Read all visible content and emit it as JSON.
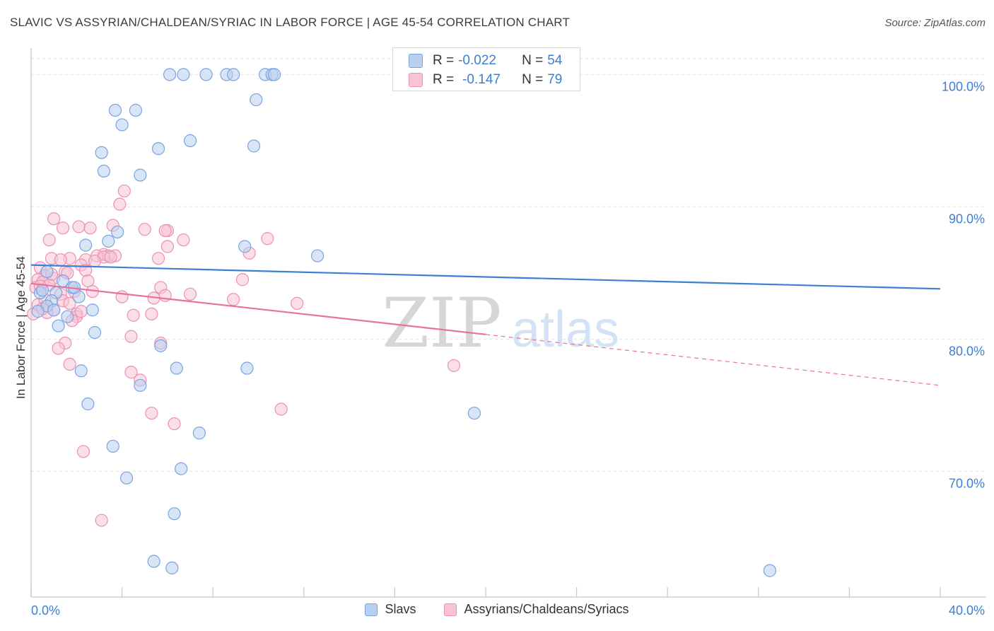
{
  "title": "SLAVIC VS ASSYRIAN/CHALDEAN/SYRIAC IN LABOR FORCE | AGE 45-54 CORRELATION CHART",
  "source": "Source: ZipAtlas.com",
  "watermark": {
    "zip": "ZIP",
    "atlas": "atlas"
  },
  "stats": {
    "r_label": "R =",
    "n_label": "N =",
    "series1": {
      "r": "-0.022",
      "n": "54",
      "fill": "#b8d0f0",
      "stroke": "#7aa3df"
    },
    "series2": {
      "r": "-0.147",
      "n": "79",
      "fill": "#f8c4d5",
      "stroke": "#ec90b0"
    }
  },
  "legend": {
    "series1": "Slavs",
    "series2": "Assyrians/Chaldeans/Syriacs"
  },
  "chart_data": {
    "type": "scatter",
    "title": "SLAVIC VS ASSYRIAN/CHALDEAN/SYRIAC IN LABOR FORCE | AGE 45-54 CORRELATION CHART",
    "xlabel": "",
    "ylabel": "In Labor Force | Age 45-54",
    "xlim": [
      0,
      40
    ],
    "ylim": [
      60.5,
      102
    ],
    "x_tick_labels": [
      "0.0%",
      "40.0%"
    ],
    "y_ticks": [
      70,
      80,
      90,
      100
    ],
    "y_tick_labels": [
      "70.0%",
      "80.0%",
      "90.0%",
      "100.0%"
    ],
    "colors": {
      "series1": "#3d7fd4",
      "series2": "#e8729a",
      "axis_label": "#3d7fd4"
    },
    "series": [
      {
        "name": "Slavs",
        "trend": {
          "x": [
            0,
            40
          ],
          "y": [
            85.6,
            83.8
          ],
          "solid_until": 40
        },
        "points": [
          [
            6.1,
            100
          ],
          [
            6.7,
            100
          ],
          [
            7.7,
            100
          ],
          [
            8.6,
            100
          ],
          [
            8.9,
            100
          ],
          [
            10.3,
            100
          ],
          [
            10.6,
            100
          ],
          [
            10.7,
            100
          ],
          [
            9.9,
            98.1
          ],
          [
            3.7,
            97.3
          ],
          [
            4.6,
            97.3
          ],
          [
            4.0,
            96.2
          ],
          [
            7.0,
            95.0
          ],
          [
            9.8,
            94.6
          ],
          [
            5.6,
            94.4
          ],
          [
            3.1,
            94.1
          ],
          [
            3.2,
            92.7
          ],
          [
            4.8,
            92.4
          ],
          [
            3.8,
            88.1
          ],
          [
            3.4,
            87.4
          ],
          [
            2.4,
            87.1
          ],
          [
            9.4,
            87.0
          ],
          [
            12.6,
            86.3
          ],
          [
            0.4,
            83.5
          ],
          [
            0.7,
            85.1
          ],
          [
            1.4,
            84.4
          ],
          [
            1.8,
            83.9
          ],
          [
            1.1,
            83.5
          ],
          [
            2.1,
            83.2
          ],
          [
            0.9,
            82.9
          ],
          [
            0.7,
            82.5
          ],
          [
            1.0,
            82.2
          ],
          [
            2.7,
            82.2
          ],
          [
            1.6,
            81.7
          ],
          [
            1.2,
            81.0
          ],
          [
            2.8,
            80.5
          ],
          [
            5.7,
            79.5
          ],
          [
            2.2,
            77.6
          ],
          [
            6.4,
            77.8
          ],
          [
            9.5,
            77.8
          ],
          [
            4.8,
            76.5
          ],
          [
            2.5,
            75.1
          ],
          [
            19.5,
            74.4
          ],
          [
            7.4,
            72.9
          ],
          [
            3.6,
            71.9
          ],
          [
            6.6,
            70.2
          ],
          [
            4.2,
            69.5
          ],
          [
            6.3,
            66.8
          ],
          [
            5.4,
            63.2
          ],
          [
            6.2,
            62.7
          ],
          [
            32.5,
            62.5
          ],
          [
            0.3,
            82.1
          ],
          [
            0.5,
            83.7
          ],
          [
            1.9,
            83.9
          ]
        ]
      },
      {
        "name": "Assyrians/Chaldeans/Syriacs",
        "trend": {
          "x": [
            0,
            40
          ],
          "y": [
            84.2,
            76.5
          ],
          "solid_until": 20
        },
        "points": [
          [
            4.1,
            91.2
          ],
          [
            3.9,
            90.2
          ],
          [
            1.0,
            89.1
          ],
          [
            3.6,
            88.6
          ],
          [
            2.1,
            88.5
          ],
          [
            2.6,
            88.4
          ],
          [
            5.0,
            88.3
          ],
          [
            1.4,
            88.4
          ],
          [
            6.0,
            88.2
          ],
          [
            0.8,
            87.5
          ],
          [
            6.7,
            87.5
          ],
          [
            10.4,
            87.6
          ],
          [
            6.0,
            87.0
          ],
          [
            9.6,
            86.5
          ],
          [
            3.2,
            86.4
          ],
          [
            2.9,
            86.3
          ],
          [
            3.4,
            86.3
          ],
          [
            3.2,
            86.2
          ],
          [
            1.7,
            86.1
          ],
          [
            2.4,
            86.0
          ],
          [
            3.7,
            86.3
          ],
          [
            5.6,
            86.1
          ],
          [
            0.9,
            86.1
          ],
          [
            2.8,
            85.9
          ],
          [
            2.2,
            85.6
          ],
          [
            0.4,
            85.4
          ],
          [
            1.5,
            85.1
          ],
          [
            2.4,
            85.2
          ],
          [
            0.6,
            84.8
          ],
          [
            1.0,
            84.6
          ],
          [
            0.3,
            84.5
          ],
          [
            0.5,
            84.3
          ],
          [
            0.8,
            84.1
          ],
          [
            2.5,
            84.4
          ],
          [
            9.3,
            84.5
          ],
          [
            5.7,
            83.9
          ],
          [
            1.9,
            83.6
          ],
          [
            1.3,
            83.4
          ],
          [
            7.0,
            83.4
          ],
          [
            4.0,
            83.2
          ],
          [
            5.9,
            83.3
          ],
          [
            5.4,
            83.1
          ],
          [
            8.9,
            83.0
          ],
          [
            1.4,
            82.9
          ],
          [
            1.7,
            82.7
          ],
          [
            11.7,
            82.7
          ],
          [
            1.0,
            82.2
          ],
          [
            0.7,
            82.0
          ],
          [
            2.0,
            81.9
          ],
          [
            2.0,
            81.7
          ],
          [
            4.5,
            81.8
          ],
          [
            5.3,
            81.9
          ],
          [
            1.8,
            81.4
          ],
          [
            0.1,
            81.9
          ],
          [
            0.3,
            82.6
          ],
          [
            4.4,
            80.2
          ],
          [
            5.7,
            79.7
          ],
          [
            1.5,
            79.7
          ],
          [
            1.2,
            79.3
          ],
          [
            1.7,
            78.1
          ],
          [
            18.6,
            78.0
          ],
          [
            4.4,
            77.5
          ],
          [
            4.8,
            76.9
          ],
          [
            11.0,
            74.7
          ],
          [
            5.3,
            74.4
          ],
          [
            6.3,
            73.6
          ],
          [
            2.3,
            71.5
          ],
          [
            3.1,
            66.3
          ],
          [
            0.2,
            83.9
          ],
          [
            0.6,
            83.0
          ],
          [
            2.7,
            83.6
          ],
          [
            1.6,
            85.0
          ],
          [
            3.5,
            86.2
          ],
          [
            2.2,
            82.1
          ],
          [
            0.9,
            84.9
          ],
          [
            0.5,
            82.3
          ],
          [
            1.3,
            86.0
          ],
          [
            0.4,
            84.0
          ],
          [
            5.9,
            88.2
          ]
        ]
      }
    ]
  }
}
